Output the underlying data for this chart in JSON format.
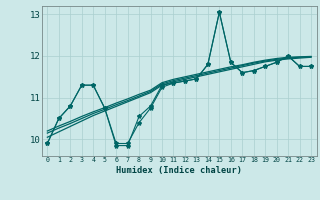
{
  "xlabel": "Humidex (Indice chaleur)",
  "x_ticks": [
    0,
    1,
    2,
    3,
    4,
    5,
    6,
    7,
    8,
    9,
    10,
    11,
    12,
    13,
    14,
    15,
    16,
    17,
    18,
    19,
    20,
    21,
    22,
    23
  ],
  "ylim": [
    9.6,
    13.2
  ],
  "yticks": [
    10,
    11,
    12,
    13
  ],
  "bg_color": "#cce8e8",
  "line_color": "#006666",
  "grid_color": "#aacfcf",
  "series": {
    "line1": [
      9.9,
      10.5,
      10.8,
      11.3,
      11.3,
      10.75,
      9.85,
      9.85,
      10.55,
      10.8,
      11.3,
      11.35,
      11.4,
      11.45,
      11.8,
      13.05,
      11.85,
      11.6,
      11.65,
      11.75,
      11.85,
      12.0,
      11.75,
      11.75
    ],
    "line2": [
      9.9,
      10.5,
      10.8,
      11.3,
      11.3,
      10.75,
      9.9,
      9.9,
      10.4,
      10.75,
      11.25,
      11.35,
      11.4,
      11.45,
      11.8,
      13.05,
      11.85,
      11.6,
      11.65,
      11.75,
      11.85,
      12.0,
      11.75,
      11.75
    ],
    "trend1": [
      10.05,
      10.18,
      10.31,
      10.44,
      10.57,
      10.68,
      10.79,
      10.9,
      11.01,
      11.12,
      11.3,
      11.38,
      11.44,
      11.5,
      11.56,
      11.62,
      11.68,
      11.74,
      11.8,
      11.86,
      11.9,
      11.93,
      11.95,
      11.97
    ],
    "trend2": [
      10.15,
      10.27,
      10.38,
      10.5,
      10.62,
      10.72,
      10.83,
      10.93,
      11.04,
      11.15,
      11.33,
      11.41,
      11.47,
      11.53,
      11.59,
      11.65,
      11.71,
      11.77,
      11.83,
      11.88,
      11.92,
      11.95,
      11.97,
      11.98
    ],
    "trend3": [
      10.2,
      10.32,
      10.43,
      10.55,
      10.66,
      10.76,
      10.87,
      10.97,
      11.08,
      11.18,
      11.36,
      11.44,
      11.5,
      11.56,
      11.62,
      11.68,
      11.74,
      11.79,
      11.85,
      11.9,
      11.94,
      11.97,
      11.98,
      11.99
    ]
  }
}
